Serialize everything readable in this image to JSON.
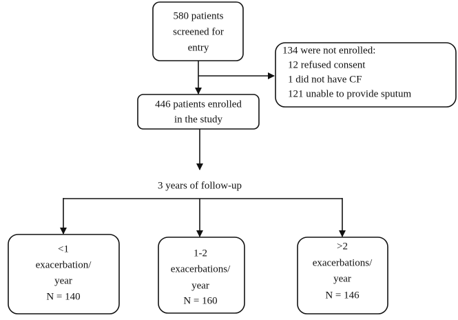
{
  "screened": {
    "lines": [
      "580 patients",
      "screened for",
      "entry"
    ]
  },
  "excluded": {
    "lines": [
      "134 were not enrolled:",
      "12 refused consent",
      "1 did not have CF",
      "121 unable to provide sputum"
    ]
  },
  "enrolled": {
    "lines": [
      "446 patients enrolled",
      "in the study"
    ]
  },
  "follow_up_label": "3 years of follow-up",
  "groups": [
    {
      "lines": [
        "<1",
        "exacerbation/",
        "year",
        "N = 140"
      ]
    },
    {
      "lines": [
        "1-2",
        "exacerbations/",
        "year",
        "N = 160"
      ]
    },
    {
      "lines": [
        ">2",
        "exacerbations/",
        "year",
        "N = 146"
      ]
    }
  ]
}
